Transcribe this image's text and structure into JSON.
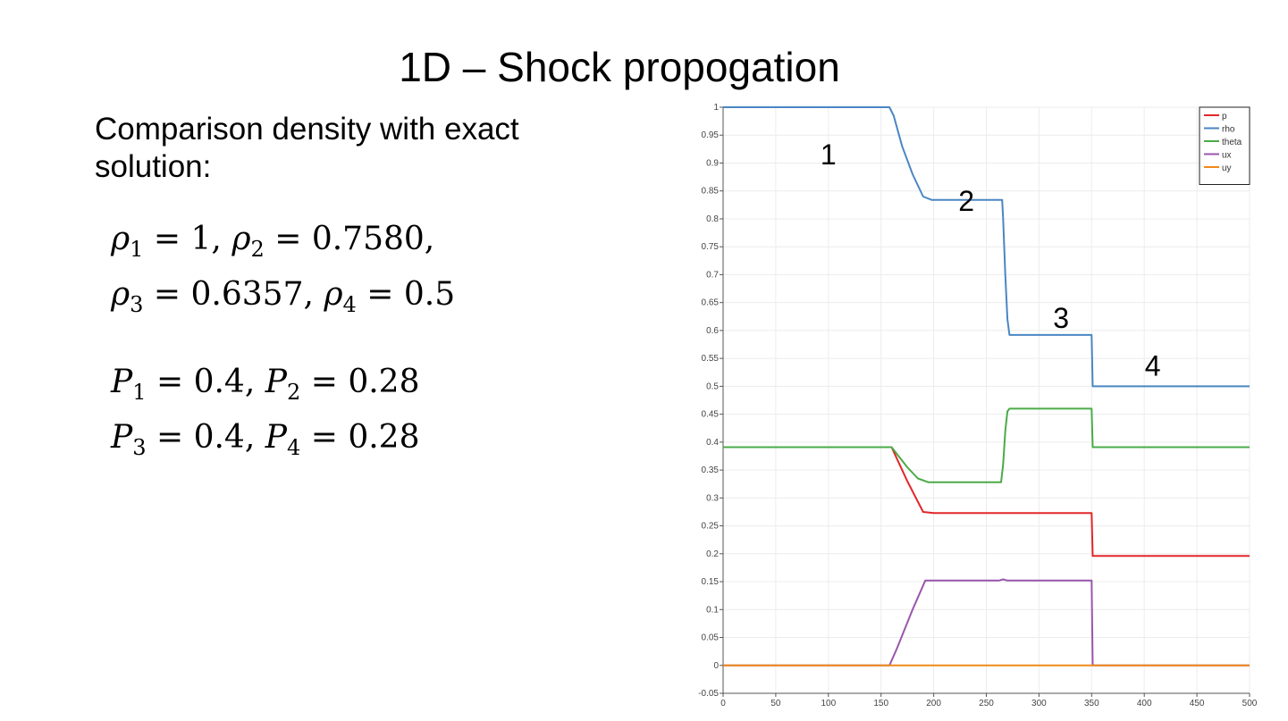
{
  "slide": {
    "title": "1D – Shock propogation",
    "subtitle": "Comparison density with exact solution:"
  },
  "equations": {
    "rho_line1": {
      "var1": "ρ",
      "sub1": "1",
      "val1": "1",
      "var2": "ρ",
      "sub2": "2",
      "val2": "0.7580",
      "trail": ","
    },
    "rho_line2": {
      "var1": "ρ",
      "sub1": "3",
      "val1": "0.6357",
      "var2": "ρ",
      "sub2": "4",
      "val2": "0.5",
      "trail": ""
    },
    "p_line1": {
      "var1": "P",
      "sub1": "1",
      "val1": "0.4",
      "var2": "P",
      "sub2": "2",
      "val2": "0.28",
      "trail": ""
    },
    "p_line2": {
      "var1": "P",
      "sub1": "3",
      "val1": "0.4",
      "var2": "P",
      "sub2": "4",
      "val2": "0.28",
      "trail": ""
    }
  },
  "chart_data": {
    "type": "line",
    "title": "",
    "xlabel": "",
    "ylabel": "",
    "xlim": [
      0,
      500
    ],
    "ylim": [
      -0.05,
      1
    ],
    "grid": true,
    "legend_position": "top-right",
    "xticks": [
      "0",
      "50",
      "100",
      "150",
      "200",
      "250",
      "300",
      "350",
      "400",
      "450",
      "500"
    ],
    "xtick_values": [
      0,
      50,
      100,
      150,
      200,
      250,
      300,
      350,
      400,
      450,
      500
    ],
    "yticks": [
      "-0.05",
      "0",
      "0.05",
      "0.1",
      "0.15",
      "0.2",
      "0.25",
      "0.3",
      "0.35",
      "0.4",
      "0.45",
      "0.5",
      "0.55",
      "0.6",
      "0.65",
      "0.7",
      "0.75",
      "0.8",
      "0.85",
      "0.9",
      "0.95",
      "1"
    ],
    "ytick_values": [
      -0.05,
      0,
      0.05,
      0.1,
      0.15,
      0.2,
      0.25,
      0.3,
      0.35,
      0.4,
      0.45,
      0.5,
      0.55,
      0.6,
      0.65,
      0.7,
      0.75,
      0.8,
      0.85,
      0.9,
      0.95,
      1
    ],
    "series": [
      {
        "name": "p",
        "color": "#e3262a",
        "x": [
          0,
          160,
          175,
          190,
          200,
          350,
          351,
          500
        ],
        "y": [
          0.391,
          0.391,
          0.33,
          0.275,
          0.273,
          0.273,
          0.196,
          0.196
        ]
      },
      {
        "name": "rho",
        "color": "#4a86c3",
        "x": [
          0,
          158,
          162,
          170,
          180,
          190,
          198,
          265,
          266,
          268,
          270,
          272,
          350,
          351,
          500
        ],
        "y": [
          1.0,
          1.0,
          0.985,
          0.93,
          0.88,
          0.84,
          0.834,
          0.834,
          0.8,
          0.7,
          0.62,
          0.592,
          0.592,
          0.5,
          0.5
        ],
        "labels": [
          {
            "text": "1",
            "x": 100,
            "y": 0.915
          },
          {
            "text": "2",
            "x": 231,
            "y": 0.832
          },
          {
            "text": "3",
            "x": 321,
            "y": 0.622
          },
          {
            "text": "4",
            "x": 408,
            "y": 0.537
          }
        ]
      },
      {
        "name": "theta",
        "color": "#4bab47",
        "x": [
          0,
          160,
          175,
          185,
          195,
          264,
          266,
          268,
          270,
          272,
          350,
          351,
          500
        ],
        "y": [
          0.391,
          0.391,
          0.355,
          0.335,
          0.328,
          0.328,
          0.36,
          0.42,
          0.455,
          0.46,
          0.46,
          0.391,
          0.391
        ]
      },
      {
        "name": "ux",
        "color": "#9a56ac",
        "x": [
          0,
          158,
          165,
          180,
          192,
          262,
          266,
          270,
          350,
          351,
          500
        ],
        "y": [
          0,
          0,
          0.03,
          0.1,
          0.152,
          0.152,
          0.154,
          0.152,
          0.152,
          0,
          0
        ]
      },
      {
        "name": "uy",
        "color": "#ef8a1a",
        "x": [
          0,
          500
        ],
        "y": [
          0,
          0
        ]
      }
    ]
  }
}
